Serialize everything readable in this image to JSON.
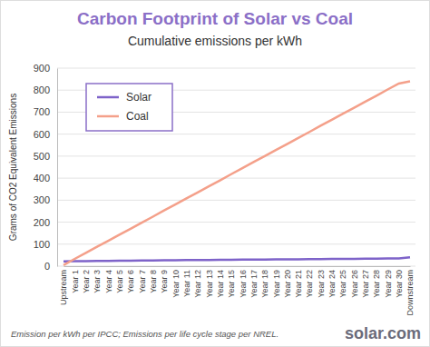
{
  "chart_data": {
    "type": "line",
    "title": "Carbon Footprint of Solar vs Coal",
    "subtitle": "Cumulative emissions per kWh",
    "y_label": "Grams of CO2 Equivalent Emissions",
    "notes": [
      "Emission per kWh per IPCC; Emissions per life cycle stage per NREL.",
      "solar.com"
    ],
    "categories": [
      "Upstream",
      "Year 1",
      "Year 2",
      "Year 3",
      "Year 4",
      "Year 5",
      "Year 6",
      "Year 7",
      "Year 8",
      "Year 9",
      "Year 10",
      "Year 11",
      "Year 12",
      "Year 13",
      "Year 14",
      "Year 15",
      "Year 16",
      "Year 17",
      "Year 18",
      "Year 19",
      "Year 20",
      "Year 21",
      "Year 22",
      "Year 23",
      "Year 24",
      "Year 25",
      "Year 26",
      "Year 27",
      "Year 28",
      "Year 29",
      "Year 30",
      "Downstream"
    ],
    "series": [
      {
        "name": "Solar",
        "color": "#7e63c9",
        "values": [
          22,
          23,
          23,
          24,
          24,
          25,
          25,
          26,
          26,
          27,
          27,
          28,
          28,
          28,
          29,
          29,
          30,
          30,
          30,
          31,
          31,
          31,
          32,
          32,
          33,
          33,
          33,
          34,
          34,
          35,
          35,
          40
        ]
      },
      {
        "name": "Coal",
        "color": "#f4a08a",
        "values": [
          5,
          33,
          60,
          88,
          115,
          143,
          170,
          198,
          225,
          253,
          280,
          308,
          335,
          363,
          390,
          418,
          445,
          473,
          500,
          528,
          555,
          583,
          610,
          638,
          665,
          693,
          720,
          748,
          775,
          803,
          830,
          840
        ]
      }
    ],
    "ylim": [
      0,
      900
    ],
    "yticks": [
      0,
      100,
      200,
      300,
      400,
      500,
      600,
      700,
      800,
      900
    ],
    "grid": true,
    "legend": "upper left"
  }
}
